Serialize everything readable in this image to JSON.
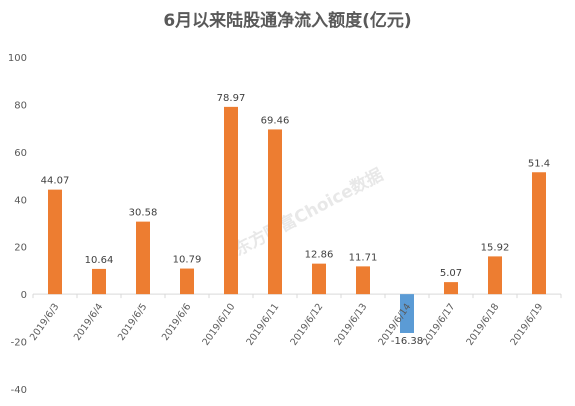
{
  "chart_data": {
    "type": "bar",
    "title": "6月以来陆股通净流入额度(亿元)",
    "categories": [
      "2019/6/3",
      "2019/6/4",
      "2019/6/5",
      "2019/6/6",
      "2019/6/10",
      "2019/6/11",
      "2019/6/12",
      "2019/6/13",
      "2019/6/14",
      "2019/6/17",
      "2019/6/18",
      "2019/6/19"
    ],
    "series": [
      {
        "values": [
          44.07,
          10.64,
          30.58,
          10.79,
          78.97,
          69.46,
          12.86,
          11.71,
          -16.38,
          5.07,
          15.92,
          51.4
        ]
      }
    ],
    "value_labels": [
      "44.07",
      "10.64",
      "30.58",
      "10.79",
      "78.97",
      "69.46",
      "12.86",
      "11.71",
      "-16.38",
      "5.07",
      "15.92",
      "51.4"
    ],
    "ylim": [
      -40,
      100
    ],
    "yticks": [
      -40,
      -20,
      0,
      20,
      40,
      60,
      80,
      100
    ],
    "grid": false,
    "legend": "none",
    "colors": {
      "positive": "#ED7D31",
      "negative": "#5B9BD5",
      "axis": "#D9D9D9",
      "text": "#595959"
    }
  },
  "watermark": "东方财富Choice数据"
}
